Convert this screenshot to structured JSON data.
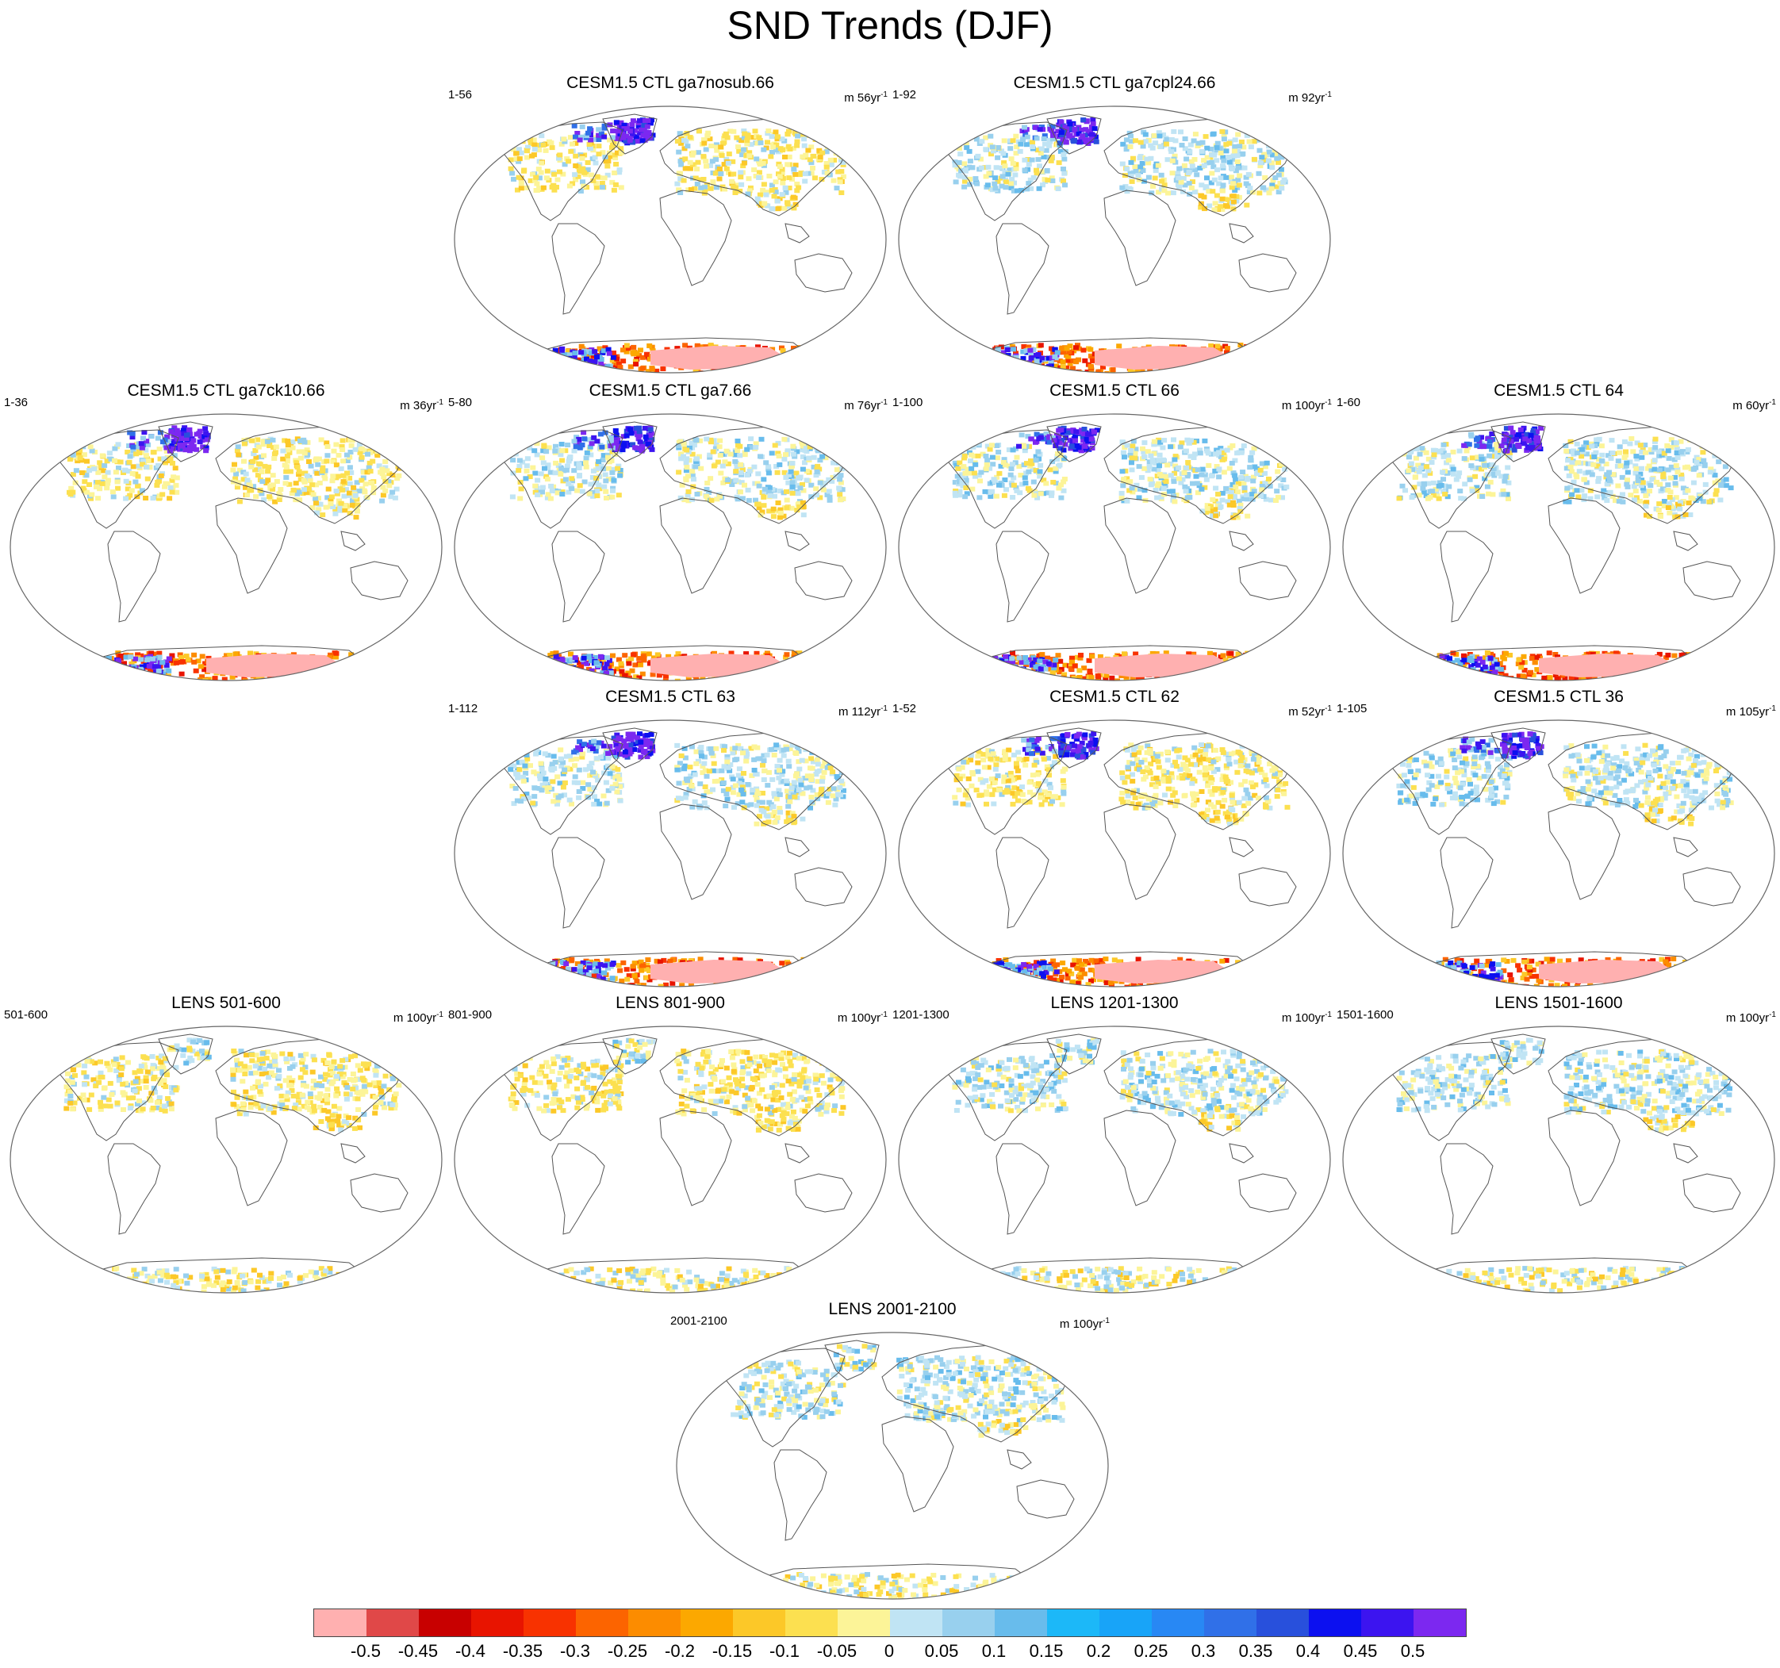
{
  "title": "SND Trends (DJF)",
  "unit_prefix": "m",
  "unit_base": "yr",
  "unit_exp": "-1",
  "panels": [
    {
      "title": "CESM1.5 CTL ga7nosub.66",
      "range": "1-56",
      "per": "56",
      "grid": [
        0,
        1
      ],
      "nh": "warm",
      "sh": "strong"
    },
    {
      "title": "CESM1.5 CTL ga7cpl24.66",
      "range": "1-92",
      "per": "92",
      "grid": [
        0,
        2
      ],
      "nh": "cool",
      "sh": "strong"
    },
    {
      "title": "CESM1.5 CTL ga7ck10.66",
      "range": "1-36",
      "per": "36",
      "grid": [
        1,
        0
      ],
      "nh": "warm",
      "sh": "strong"
    },
    {
      "title": "CESM1.5 CTL ga7.66",
      "range": "5-80",
      "per": "76",
      "grid": [
        1,
        1
      ],
      "nh": "cool",
      "sh": "strong"
    },
    {
      "title": "CESM1.5 CTL 66",
      "range": "1-100",
      "per": "100",
      "grid": [
        1,
        2
      ],
      "nh": "cool",
      "sh": "strong"
    },
    {
      "title": "CESM1.5 CTL 64",
      "range": "1-60",
      "per": "60",
      "grid": [
        1,
        3
      ],
      "nh": "cool",
      "sh": "strong"
    },
    {
      "title": "CESM1.5 CTL 63",
      "range": "1-112",
      "per": "112",
      "grid": [
        2,
        1
      ],
      "nh": "cool",
      "sh": "strong"
    },
    {
      "title": "CESM1.5 CTL 62",
      "range": "1-52",
      "per": "52",
      "grid": [
        2,
        2
      ],
      "nh": "warm",
      "sh": "strong"
    },
    {
      "title": "CESM1.5 CTL 36",
      "range": "1-105",
      "per": "105",
      "grid": [
        2,
        3
      ],
      "nh": "cool",
      "sh": "strong"
    },
    {
      "title": "LENS 501-600",
      "range": "501-600",
      "per": "100",
      "grid": [
        3,
        0
      ],
      "nh": "warm",
      "sh": "weak"
    },
    {
      "title": "LENS 801-900",
      "range": "801-900",
      "per": "100",
      "grid": [
        3,
        1
      ],
      "nh": "warm",
      "sh": "weak"
    },
    {
      "title": "LENS 1201-1300",
      "range": "1201-1300",
      "per": "100",
      "grid": [
        3,
        2
      ],
      "nh": "cool",
      "sh": "weak"
    },
    {
      "title": "LENS 1501-1600",
      "range": "1501-1600",
      "per": "100",
      "grid": [
        3,
        3
      ],
      "nh": "cool",
      "sh": "weak"
    },
    {
      "title": "LENS 2001-2100",
      "range": "2001-2100",
      "per": "100",
      "grid": [
        4,
        1.5
      ],
      "nh": "cool",
      "sh": "weak"
    }
  ],
  "colorbar": {
    "colors": [
      "#ffb0b0",
      "#e04848",
      "#c80000",
      "#e81400",
      "#f83200",
      "#fc6400",
      "#fc8c00",
      "#fca800",
      "#fcc828",
      "#fce050",
      "#fcf498",
      "#c0e4f4",
      "#98d0ee",
      "#68bcec",
      "#1cb8f8",
      "#18a4f8",
      "#2888f4",
      "#3070e8",
      "#2850dc",
      "#0c10f0",
      "#3c14f0",
      "#7c28f0"
    ],
    "labels": [
      "-0.5",
      "-0.45",
      "-0.4",
      "-0.35",
      "-0.3",
      "-0.25",
      "-0.2",
      "-0.15",
      "-0.1",
      "-0.05",
      "0",
      "0.05",
      "0.1",
      "0.15",
      "0.2",
      "0.25",
      "0.3",
      "0.35",
      "0.4",
      "0.45",
      "0.5"
    ]
  }
}
